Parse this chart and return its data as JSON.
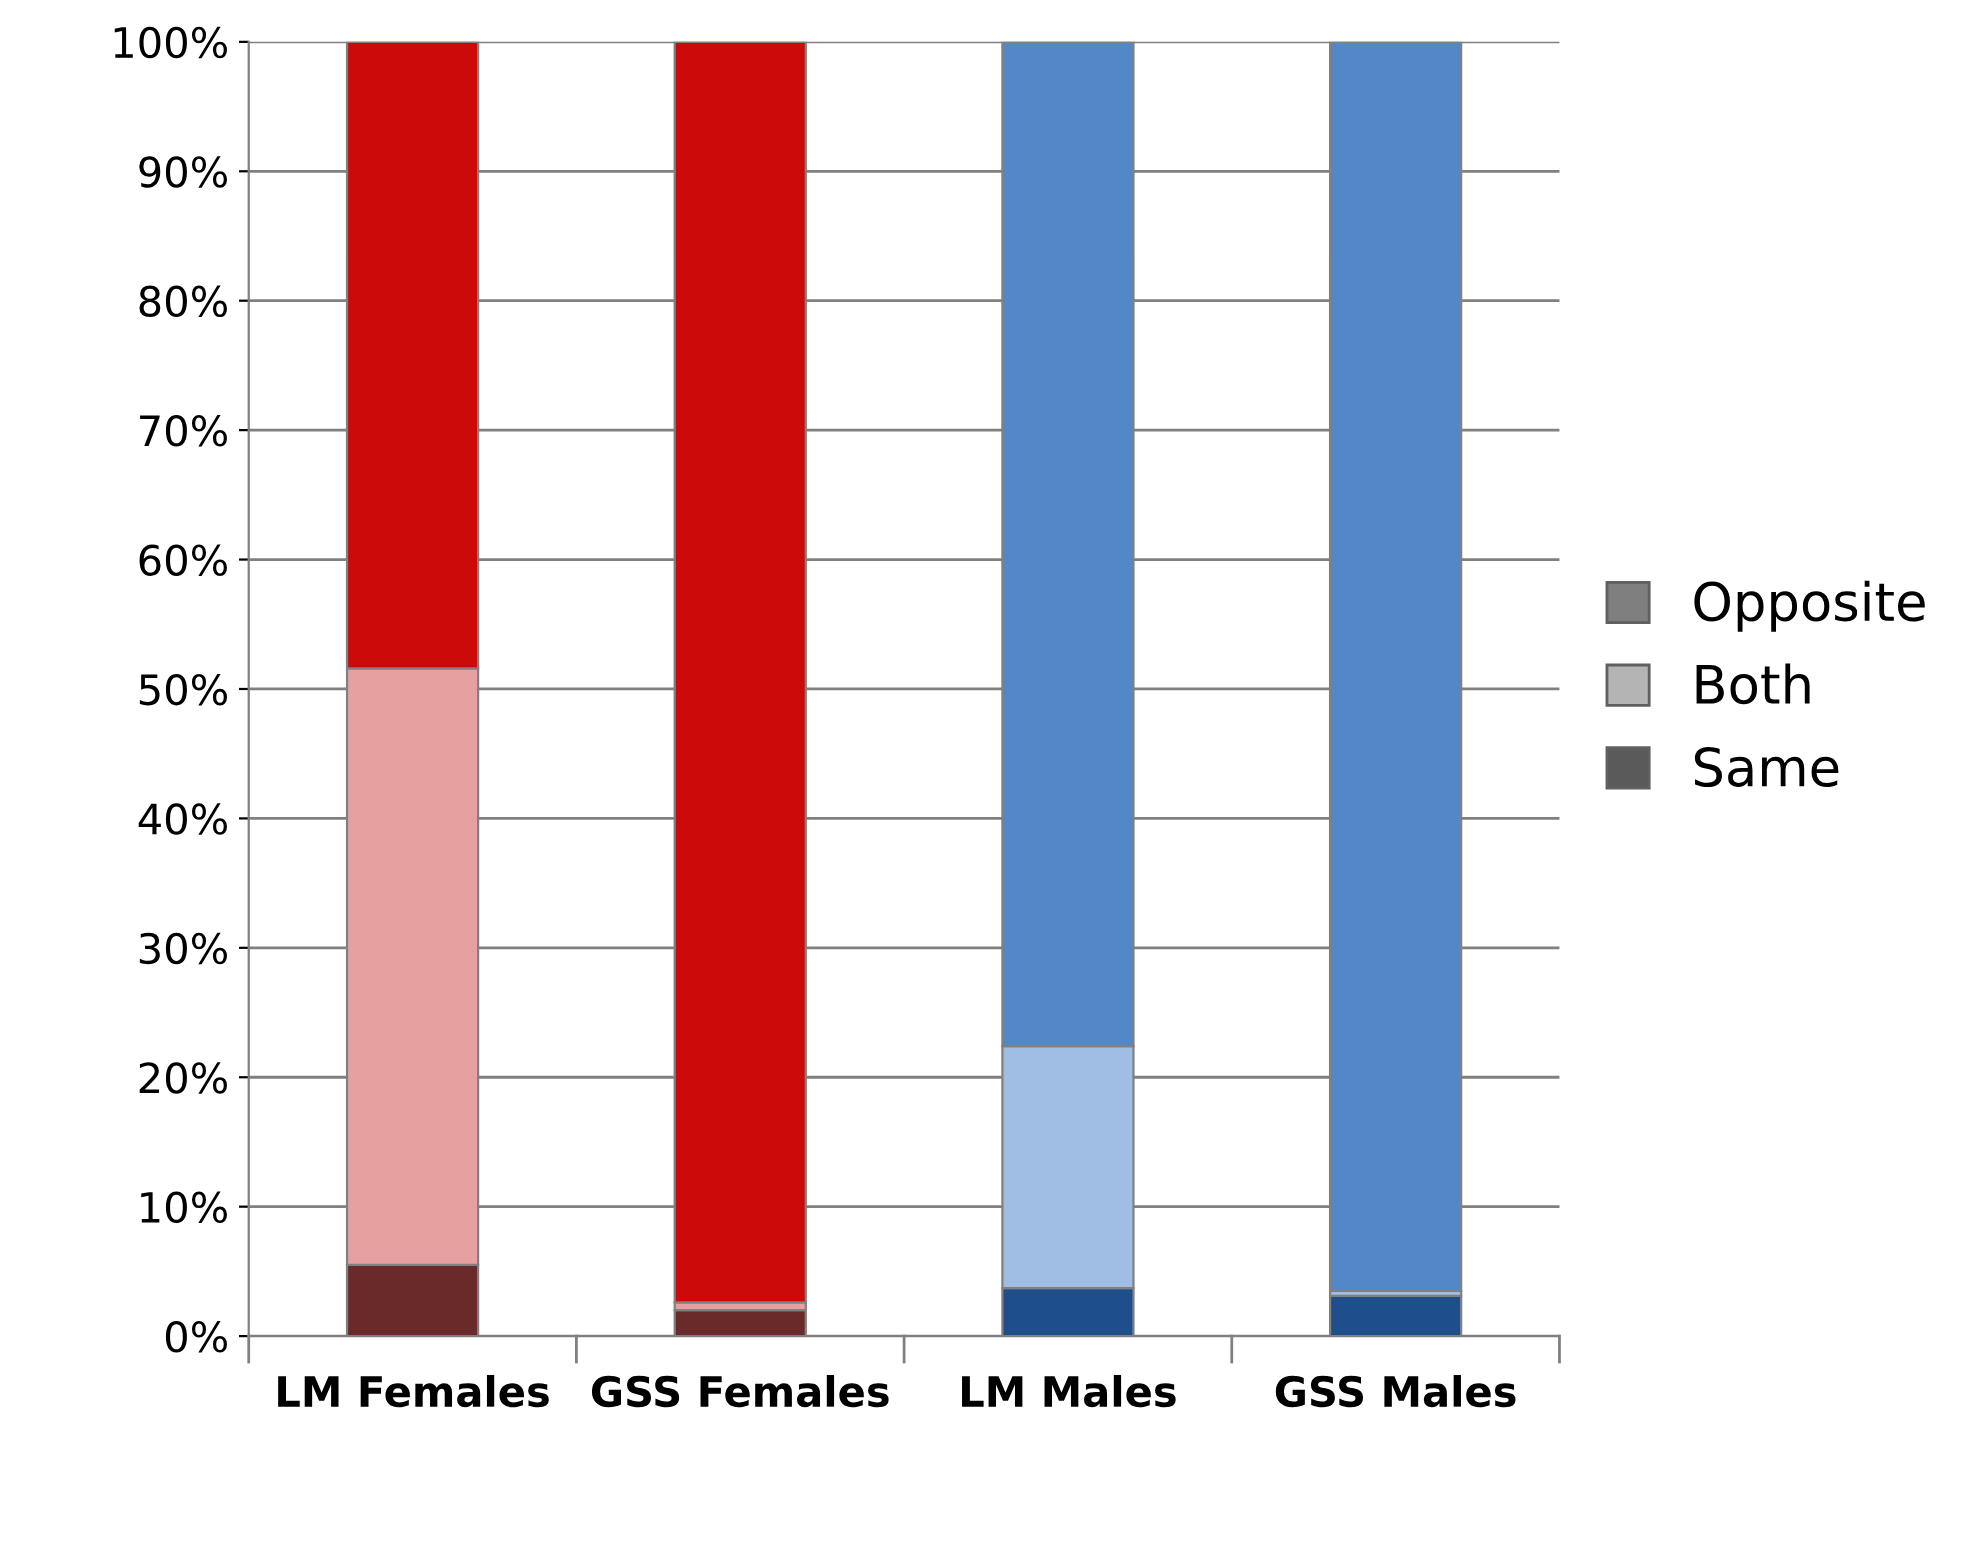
{
  "chart_data": {
    "type": "bar",
    "stacked": true,
    "categories": [
      "LM Females",
      "GSS Females",
      "LM Males",
      "GSS Males"
    ],
    "series": [
      {
        "name": "Same",
        "color": "#5a5a5a",
        "colors": [
          "#6b2a2a",
          "#6b2a2a",
          "#1f4e8c",
          "#1f4e8c"
        ],
        "values": [
          5.5,
          2.0,
          3.7,
          3.1
        ]
      },
      {
        "name": "Both",
        "color": "#b4b4b4",
        "colors": [
          "#e6a0a0",
          "#e6a0a0",
          "#a0bde3",
          "#a0bde3"
        ],
        "values": [
          46.1,
          0.6,
          18.7,
          0.4
        ]
      },
      {
        "name": "Opposite",
        "color": "#7f7f7f",
        "colors": [
          "#cc0a0a",
          "#cc0a0a",
          "#5287c8",
          "#5287c8"
        ],
        "values": [
          48.4,
          97.4,
          77.6,
          96.5
        ]
      }
    ],
    "ylim": [
      0,
      100
    ],
    "yticks": [
      {
        "value": 0,
        "label": "0%"
      },
      {
        "value": 10,
        "label": "10%"
      },
      {
        "value": 20,
        "label": "20%"
      },
      {
        "value": 30,
        "label": "30%"
      },
      {
        "value": 40,
        "label": "40%"
      },
      {
        "value": 50,
        "label": "50%"
      },
      {
        "value": 60,
        "label": "60%"
      },
      {
        "value": 70,
        "label": "70%"
      },
      {
        "value": 80,
        "label": "80%"
      },
      {
        "value": 90,
        "label": "90%"
      },
      {
        "value": 100,
        "label": "100%"
      }
    ],
    "grid": "y",
    "legend": "right"
  }
}
